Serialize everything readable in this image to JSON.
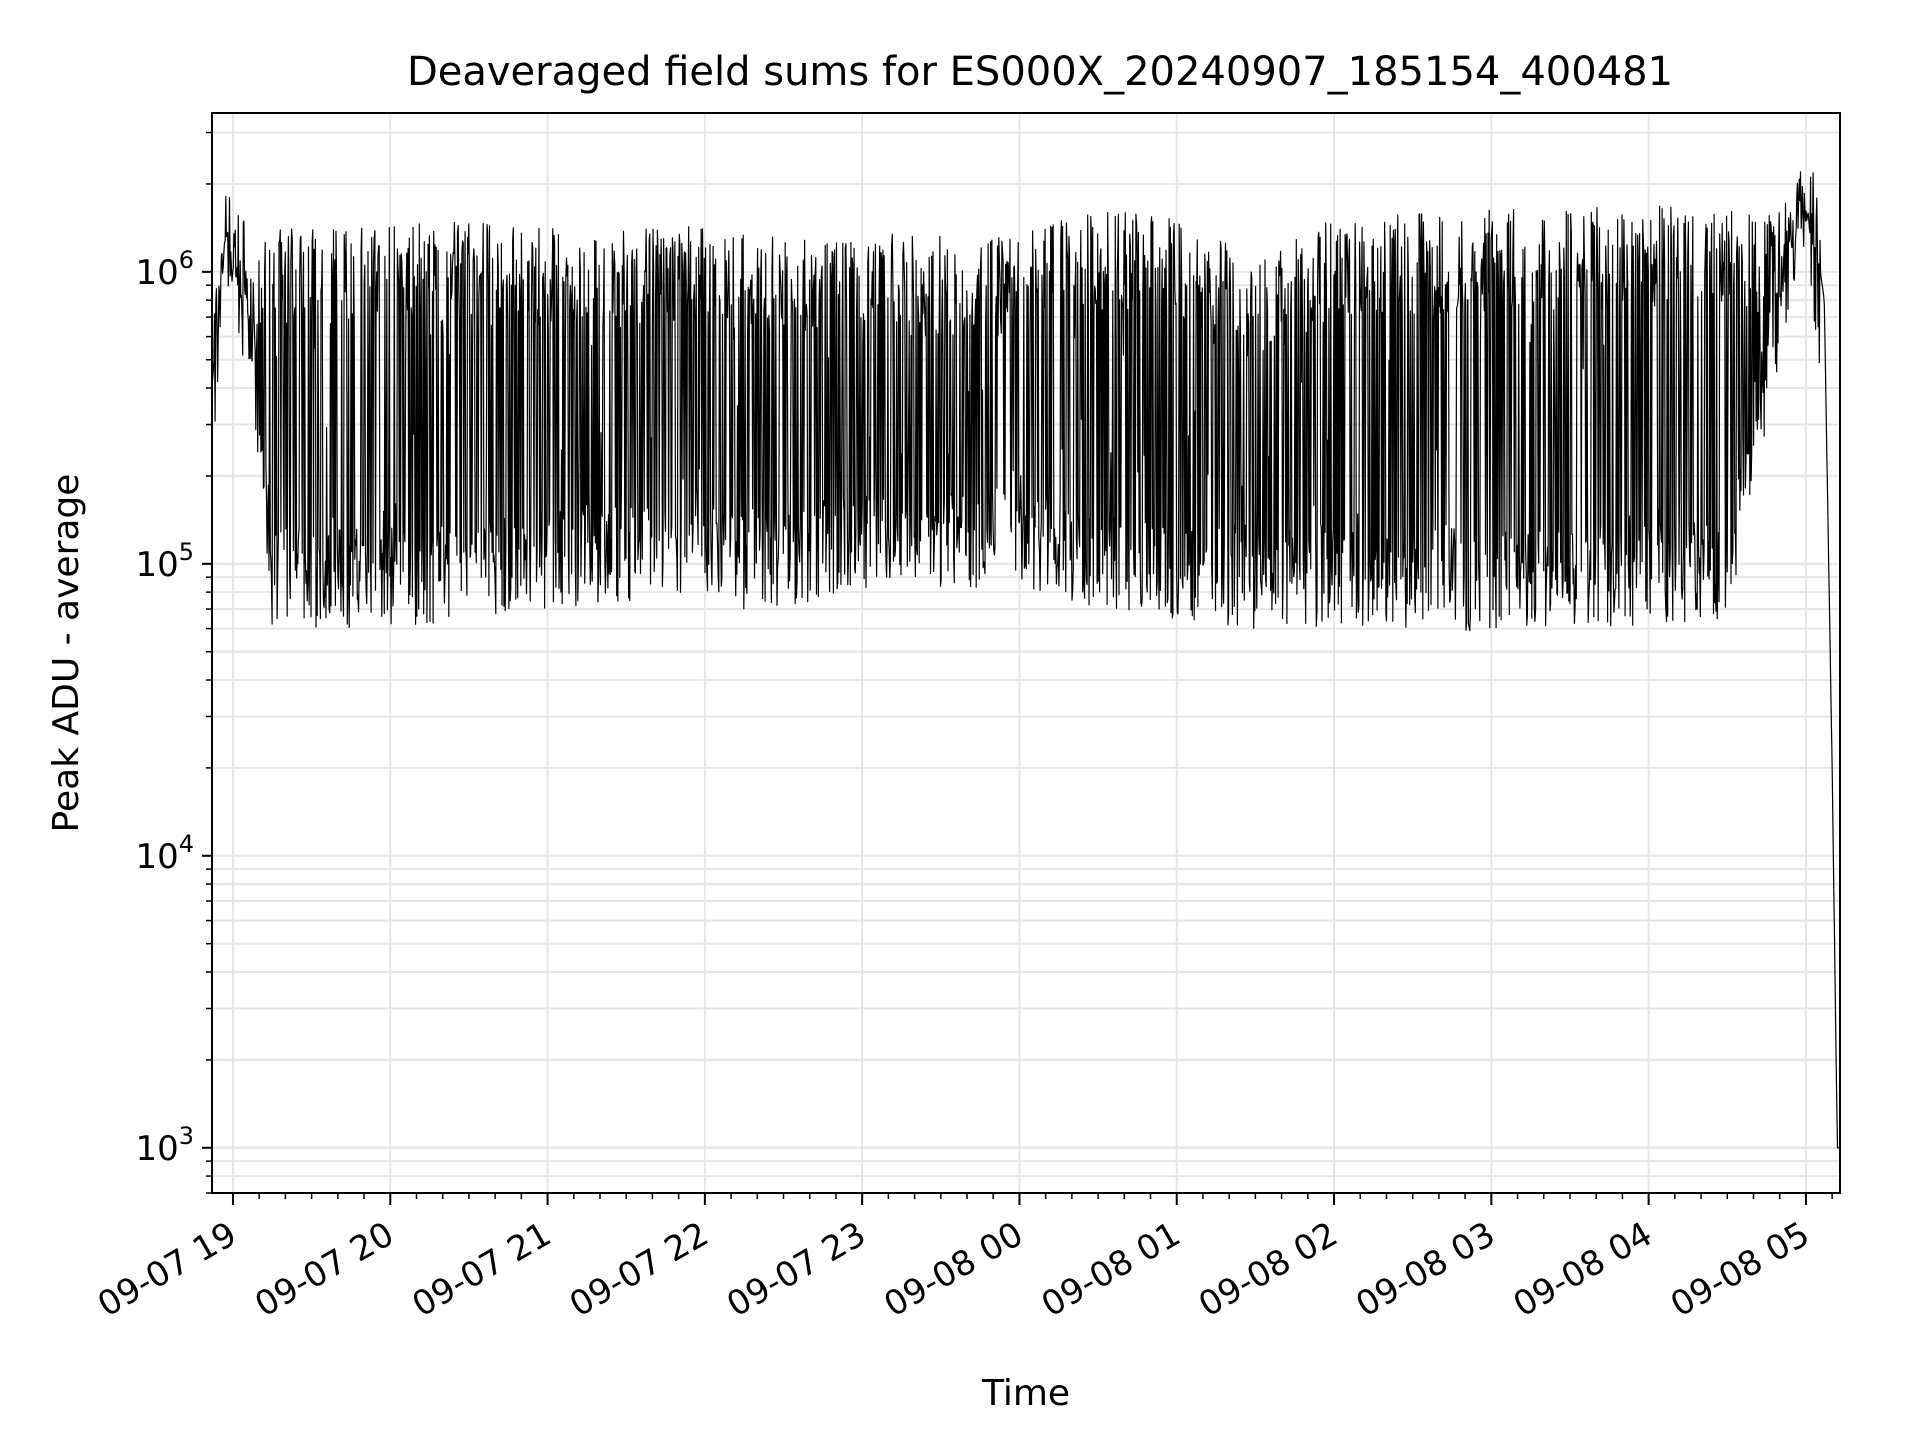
{
  "chart_data": {
    "type": "line",
    "title": "Deaveraged field sums for ES000X_20240907_185154_400481",
    "xlabel": "Time",
    "ylabel": "Peak ADU - average",
    "yscale": "log",
    "ylim": [
      700,
      3500000
    ],
    "xlim": [
      "2024-09-07 18:52",
      "2024-09-08 05:13"
    ],
    "grid": true,
    "line_color": "#000000",
    "x_ticks": [
      "09-07 19",
      "09-07 20",
      "09-07 21",
      "09-07 22",
      "09-07 23",
      "09-08 00",
      "09-08 01",
      "09-08 02",
      "09-08 03",
      "09-08 04",
      "09-08 05"
    ],
    "y_ticks": [
      {
        "base": "10",
        "exp": "3",
        "value": 1000
      },
      {
        "base": "10",
        "exp": "4",
        "value": 10000
      },
      {
        "base": "10",
        "exp": "5",
        "value": 100000
      },
      {
        "base": "10",
        "exp": "6",
        "value": 1000000
      }
    ],
    "envelope": {
      "x": [
        "2024-09-07 18:52",
        "2024-09-07 18:57",
        "2024-09-07 19:05",
        "2024-09-07 19:15",
        "2024-09-07 20:00",
        "2024-09-07 20:30",
        "2024-09-07 21:00",
        "2024-09-07 21:30",
        "2024-09-07 22:00",
        "2024-09-07 22:30",
        "2024-09-07 23:00",
        "2024-09-07 23:30",
        "2024-09-08 00:00",
        "2024-09-08 00:30",
        "2024-09-08 01:00",
        "2024-09-08 01:30",
        "2024-09-08 02:00",
        "2024-09-08 02:30",
        "2024-09-08 03:00",
        "2024-09-08 03:30",
        "2024-09-08 04:00",
        "2024-09-08 04:30",
        "2024-09-08 04:45",
        "2024-09-08 05:00",
        "2024-09-08 05:07",
        "2024-09-08 05:10",
        "2024-09-08 05:12"
      ],
      "upper": [
        400000,
        1700000,
        1000000,
        1400000,
        1450000,
        1500000,
        1450000,
        1400000,
        1450000,
        1300000,
        1350000,
        1350000,
        1350000,
        1650000,
        1550000,
        1100000,
        1550000,
        1600000,
        1650000,
        1650000,
        1700000,
        1650000,
        1600000,
        2300000,
        800000,
        20000,
        1000
      ],
      "lower": [
        400000,
        900000,
        700000,
        60000,
        60000,
        65000,
        70000,
        75000,
        70000,
        70000,
        80000,
        80000,
        85000,
        70000,
        65000,
        60000,
        60000,
        60000,
        58000,
        60000,
        62000,
        65000,
        300000,
        1300000,
        800000,
        20000,
        1000
      ]
    }
  }
}
